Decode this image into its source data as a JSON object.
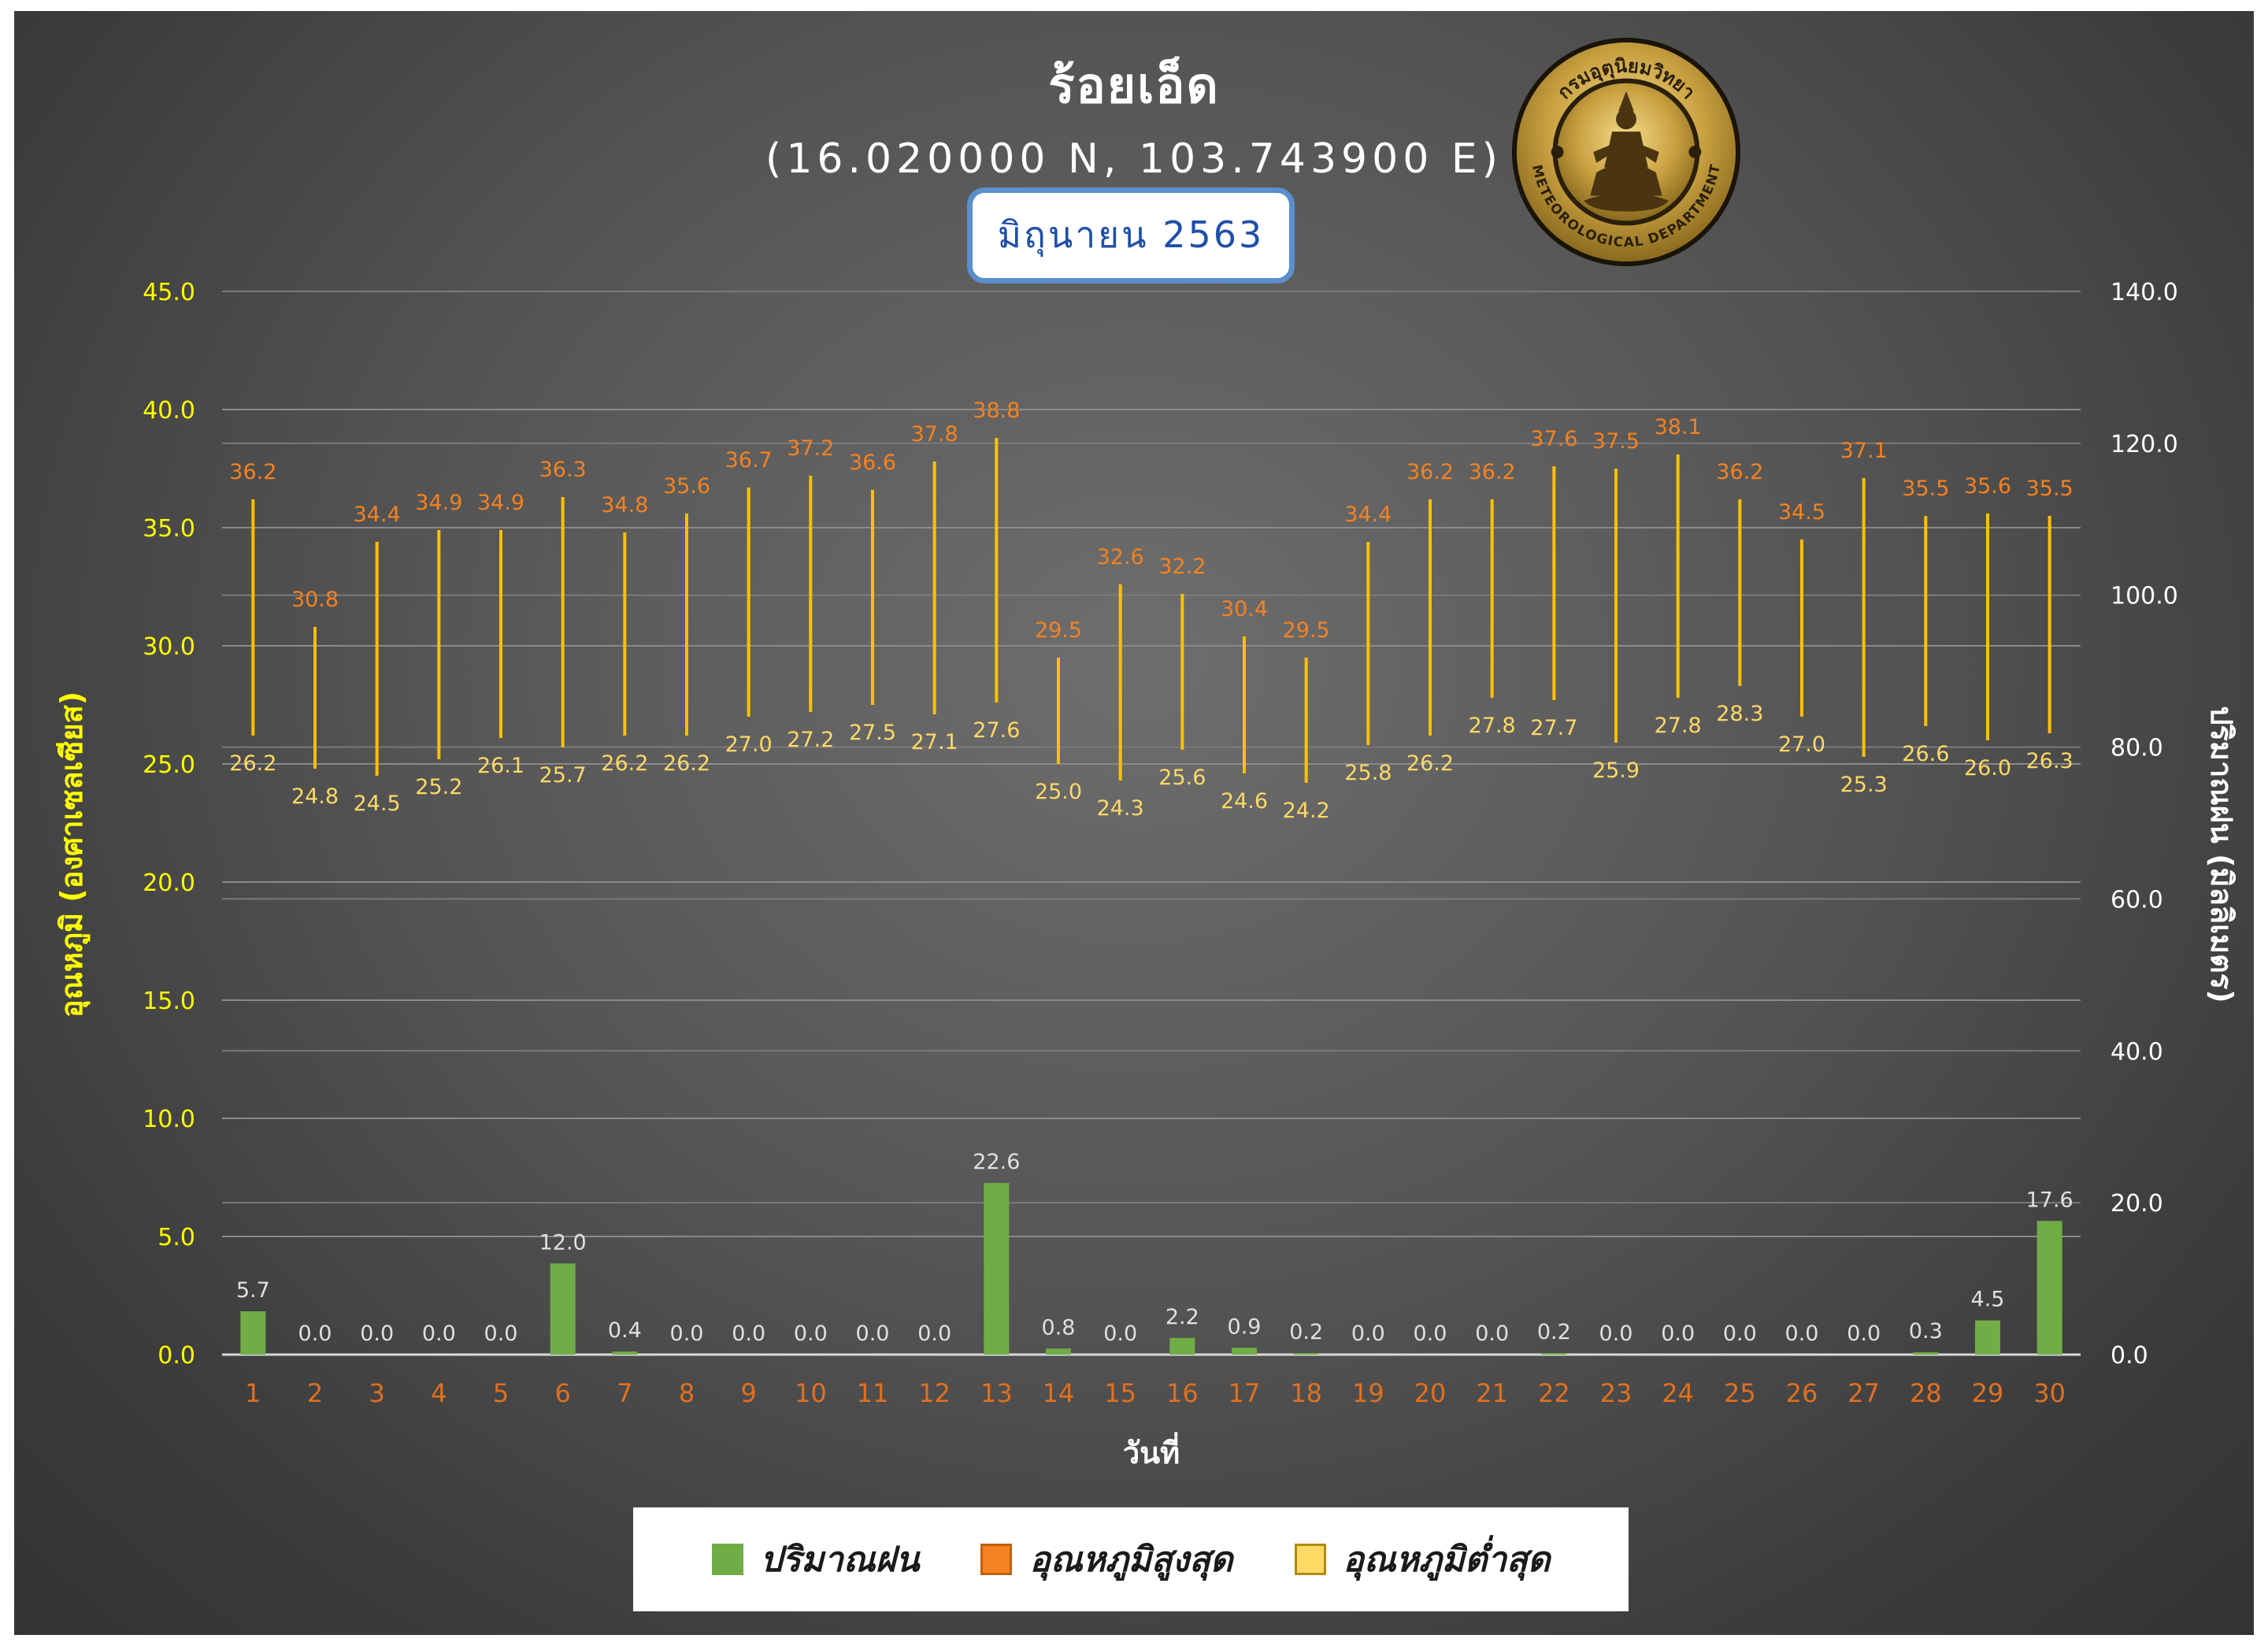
{
  "header": {
    "title": "ร้อยเอ็ด",
    "coordinates": "(16.020000 N, 103.743900 E)",
    "month": "มิถุนายน 2563"
  },
  "logo": {
    "text_top": "กรมอุตุนิยมวิทยา",
    "text_bottom": "METEOROLOGICAL DEPARTMENT"
  },
  "legend": {
    "rain_label": "ปริมาณฝน",
    "max_label": "อุณหภูมิสูงสุด",
    "min_label": "อุณหภูมิต่ำสุด"
  },
  "colors": {
    "rain": "#70ad47",
    "max": "#f58220",
    "min": "#ffd966",
    "range_line": "#ffc000",
    "left_axis": "#ffff00",
    "x_ticks": "#e07020"
  },
  "chart_data": {
    "type": "bar",
    "x": [
      1,
      2,
      3,
      4,
      5,
      6,
      7,
      8,
      9,
      10,
      11,
      12,
      13,
      14,
      15,
      16,
      17,
      18,
      19,
      20,
      21,
      22,
      23,
      24,
      25,
      26,
      27,
      28,
      29,
      30
    ],
    "xlabel": "วันที่",
    "ylabel_left": "อุณหภูมิ (องศาเซลเซียส)",
    "ylabel_right": "ปริมาณฝน (มิลลิเมตร)",
    "ylim_left": [
      0,
      45
    ],
    "ylim_right": [
      0,
      140
    ],
    "yticks_left": [
      "0.0",
      "5.0",
      "10.0",
      "15.0",
      "20.0",
      "25.0",
      "30.0",
      "35.0",
      "40.0",
      "45.0"
    ],
    "yticks_right": [
      "0.0",
      "20.0",
      "40.0",
      "60.0",
      "80.0",
      "100.0",
      "120.0",
      "140.0"
    ],
    "grid": true,
    "legend_position": "bottom",
    "series": [
      {
        "name": "ปริมาณฝน",
        "type": "bar",
        "axis": "right",
        "values": [
          5.7,
          0.0,
          0.0,
          0.0,
          0.0,
          12.0,
          0.4,
          0.0,
          0.0,
          0.0,
          0.0,
          0.0,
          22.6,
          0.8,
          0.0,
          2.2,
          0.9,
          0.2,
          0.0,
          0.0,
          0.0,
          0.2,
          0.0,
          0.0,
          0.0,
          0.0,
          0.0,
          0.3,
          4.5,
          17.6
        ]
      },
      {
        "name": "อุณหภูมิสูงสุด",
        "type": "high",
        "axis": "left",
        "values": [
          36.2,
          30.8,
          34.4,
          34.9,
          34.9,
          36.3,
          34.8,
          35.6,
          36.7,
          37.2,
          36.6,
          37.8,
          38.8,
          29.5,
          32.6,
          32.2,
          30.4,
          29.5,
          34.4,
          36.2,
          36.2,
          37.6,
          37.5,
          38.1,
          36.2,
          34.5,
          37.1,
          35.5,
          35.6,
          35.5
        ]
      },
      {
        "name": "อุณหภูมิต่ำสุด",
        "type": "low",
        "axis": "left",
        "values": [
          26.2,
          24.8,
          24.5,
          25.2,
          26.1,
          25.7,
          26.2,
          26.2,
          27.0,
          27.2,
          27.5,
          27.1,
          27.6,
          25.0,
          24.3,
          25.6,
          24.6,
          24.2,
          25.8,
          26.2,
          27.8,
          27.7,
          25.9,
          27.8,
          28.3,
          27.0,
          25.3,
          26.6,
          26.0,
          26.3
        ]
      }
    ]
  }
}
